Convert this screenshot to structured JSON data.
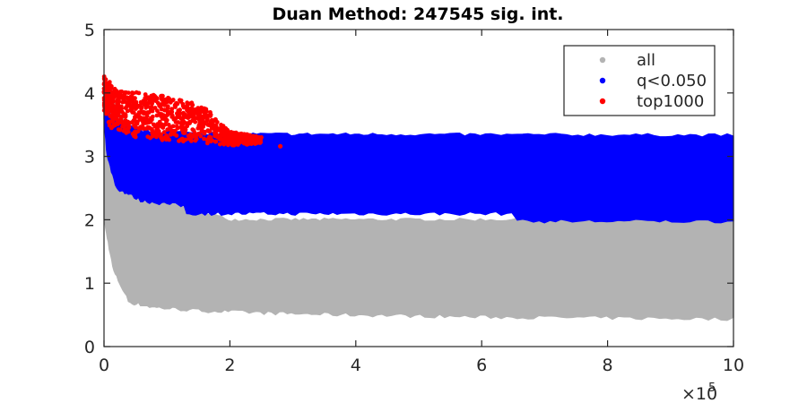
{
  "chart_data": {
    "type": "scatter",
    "title": "Duan Method: 247545 sig. int.",
    "xlabel": "",
    "ylabel": "",
    "xlim": [
      0,
      1000000
    ],
    "ylim": [
      0,
      5
    ],
    "x_ticks": [
      0,
      200000,
      400000,
      600000,
      800000,
      1000000
    ],
    "x_tick_labels": [
      "0",
      "2",
      "4",
      "6",
      "8",
      "10"
    ],
    "x_exponent_base": "×10",
    "x_exponent_power": "5",
    "y_ticks": [
      0,
      1,
      2,
      3,
      4,
      5
    ],
    "y_tick_labels": [
      "0",
      "1",
      "2",
      "3",
      "4",
      "5"
    ],
    "grid": false,
    "legend_position": "top-right",
    "series": [
      {
        "name": "all",
        "color": "#b3b3b3",
        "band_upper": [
          [
            0,
            4.2
          ],
          [
            100000,
            2.3
          ],
          [
            200000,
            2.0
          ],
          [
            1000000,
            2.0
          ]
        ],
        "band_lower": [
          [
            0,
            2.0
          ],
          [
            15000,
            1.2
          ],
          [
            40000,
            0.7
          ],
          [
            80000,
            0.62
          ],
          [
            150000,
            0.57
          ],
          [
            300000,
            0.52
          ],
          [
            600000,
            0.47
          ],
          [
            1000000,
            0.44
          ]
        ]
      },
      {
        "name": "q<0.050",
        "color": "#0000ff",
        "band_upper": [
          [
            0,
            4.25
          ],
          [
            10000,
            3.6
          ],
          [
            60000,
            3.4
          ],
          [
            200000,
            3.35
          ],
          [
            1000000,
            3.33
          ]
        ],
        "band_lower": [
          [
            0,
            3.6
          ],
          [
            5000,
            3.0
          ],
          [
            20000,
            2.5
          ],
          [
            60000,
            2.3
          ],
          [
            130000,
            2.22
          ],
          [
            130500,
            2.1
          ],
          [
            650000,
            2.1
          ],
          [
            660000,
            1.98
          ],
          [
            1000000,
            1.98
          ]
        ]
      },
      {
        "name": "top1000",
        "color": "#ff0000",
        "band_upper": [
          [
            0,
            4.28
          ],
          [
            20000,
            4.05
          ],
          [
            60000,
            4.0
          ],
          [
            100000,
            3.95
          ],
          [
            140000,
            3.85
          ],
          [
            170000,
            3.72
          ],
          [
            175000,
            3.6
          ],
          [
            200000,
            3.4
          ],
          [
            250000,
            3.3
          ]
        ],
        "band_lower": [
          [
            250000,
            3.2
          ],
          [
            200000,
            3.17
          ],
          [
            150000,
            3.22
          ],
          [
            100000,
            3.25
          ],
          [
            50000,
            3.3
          ],
          [
            10000,
            3.45
          ],
          [
            0,
            3.7
          ]
        ],
        "outliers": [
          [
            280000,
            3.16
          ],
          [
            173000,
            3.55
          ],
          [
            177000,
            3.58
          ]
        ]
      }
    ]
  }
}
